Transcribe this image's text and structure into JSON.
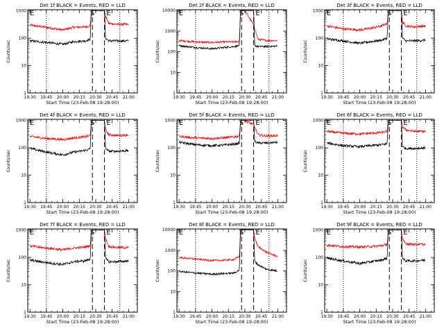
{
  "colors": {
    "events": "#000000",
    "lld": "#ff0000",
    "axes": "#000000",
    "background": "#ffffff"
  },
  "chart_data": [
    {
      "type": "line",
      "title": "Det 1f BLACK = Events, RED = LLD",
      "xlabel": "Start Time (23-Feb-08 19:28:00)",
      "ylabel": "Counts/sec",
      "x_ticks": [
        "19:30",
        "19:45",
        "20:00",
        "20:15",
        "20:30",
        "20:45",
        "21:00"
      ],
      "y_ticks": [
        "1",
        "10",
        "100",
        "1000"
      ],
      "yscale": "log",
      "ylim": [
        1,
        1100
      ],
      "markers": [
        "S",
        "E"
      ],
      "series": [
        {
          "color": "red",
          "x": [
            "19:30",
            "19:45",
            "20:00",
            "20:10",
            "20:20",
            "20:25",
            "20:26",
            "20:27",
            "20:30",
            "20:38",
            "20:39",
            "20:42",
            "20:50",
            "21:00"
          ],
          "y": [
            300,
            250,
            200,
            250,
            260,
            280,
            1000,
            1000,
            1000,
            1000,
            600,
            350,
            320,
            320
          ]
        },
        {
          "color": "black",
          "x": [
            "19:30",
            "19:45",
            "20:00",
            "20:10",
            "20:20",
            "20:25",
            "20:26",
            "20:30",
            "20:38",
            "20:39",
            "20:42",
            "20:50",
            "21:00"
          ],
          "y": [
            80,
            70,
            60,
            75,
            80,
            90,
            1000,
            1000,
            1000,
            100,
            80,
            80,
            80
          ]
        }
      ]
    },
    {
      "type": "line",
      "title": "Det 2f BLACK = Events, RED = LLD",
      "xlabel": "Start Time (23-Feb-08 19:28:00)",
      "ylabel": "Counts/sec",
      "x_ticks": [
        "19:30",
        "19:45",
        "20:00",
        "20:15",
        "20:30",
        "20:45",
        "21:00"
      ],
      "y_ticks": [
        "1",
        "10",
        "100",
        "1000",
        "10000"
      ],
      "yscale": "log",
      "ylim": [
        1,
        11000
      ],
      "markers": [
        "S",
        "E"
      ],
      "series": [
        {
          "color": "red",
          "x": [
            "19:30",
            "19:45",
            "20:00",
            "20:10",
            "20:20",
            "20:25",
            "20:26",
            "20:30",
            "20:38",
            "20:42",
            "20:50",
            "21:00"
          ],
          "y": [
            350,
            300,
            280,
            300,
            300,
            320,
            10000,
            10000,
            2000,
            400,
            350,
            350
          ]
        },
        {
          "color": "black",
          "x": [
            "19:30",
            "19:45",
            "20:00",
            "20:10",
            "20:20",
            "20:25",
            "20:26",
            "20:30",
            "20:38",
            "20:39",
            "20:42",
            "20:50",
            "21:00"
          ],
          "y": [
            200,
            160,
            140,
            160,
            180,
            200,
            10000,
            10000,
            10000,
            200,
            180,
            180,
            190
          ]
        }
      ]
    },
    {
      "type": "line",
      "title": "Det 3f BLACK = Events, RED = LLD",
      "xlabel": "Start Time (23-Feb-08 19:28:00)",
      "ylabel": "Counts/sec",
      "x_ticks": [
        "19:30",
        "19:45",
        "20:00",
        "20:15",
        "20:30",
        "20:45",
        "21:00"
      ],
      "y_ticks": [
        "1",
        "10",
        "100",
        "1000"
      ],
      "yscale": "log",
      "ylim": [
        1,
        1100
      ],
      "markers": [
        "S",
        "E"
      ],
      "series": [
        {
          "color": "red",
          "x": [
            "19:30",
            "19:45",
            "20:00",
            "20:10",
            "20:20",
            "20:25",
            "20:26",
            "20:30",
            "20:38",
            "20:39",
            "20:42",
            "20:50",
            "21:00"
          ],
          "y": [
            280,
            220,
            200,
            230,
            280,
            350,
            1000,
            1000,
            1000,
            400,
            280,
            260,
            280
          ]
        },
        {
          "color": "black",
          "x": [
            "19:30",
            "19:45",
            "20:00",
            "20:10",
            "20:20",
            "20:25",
            "20:26",
            "20:30",
            "20:38",
            "20:39",
            "20:42",
            "20:50",
            "21:00"
          ],
          "y": [
            95,
            80,
            65,
            75,
            85,
            100,
            1000,
            1000,
            1000,
            100,
            80,
            80,
            85
          ]
        }
      ]
    },
    {
      "type": "line",
      "title": "Det 4f BLACK = Events, RED = LLD",
      "xlabel": "Start Time (23-Feb-08 19:28:00)",
      "ylabel": "Counts/sec",
      "x_ticks": [
        "19:30",
        "19:45",
        "20:00",
        "20:15",
        "20:30",
        "20:45",
        "21:00"
      ],
      "y_ticks": [
        "1",
        "10",
        "100",
        "1000"
      ],
      "yscale": "log",
      "ylim": [
        1,
        1100
      ],
      "markers": [
        "S",
        "E"
      ],
      "series": [
        {
          "color": "red",
          "x": [
            "19:30",
            "19:45",
            "20:00",
            "20:10",
            "20:20",
            "20:25",
            "20:26",
            "20:30",
            "20:38",
            "20:39",
            "20:42",
            "20:50",
            "21:00"
          ],
          "y": [
            260,
            220,
            200,
            230,
            250,
            280,
            1000,
            1000,
            1000,
            450,
            300,
            280,
            300
          ]
        },
        {
          "color": "black",
          "x": [
            "19:30",
            "19:45",
            "20:00",
            "20:10",
            "20:20",
            "20:25",
            "20:26",
            "20:30",
            "20:38",
            "20:39",
            "20:42",
            "20:50",
            "21:00"
          ],
          "y": [
            95,
            70,
            55,
            70,
            80,
            90,
            1000,
            1000,
            1000,
            95,
            75,
            75,
            80
          ]
        }
      ]
    },
    {
      "type": "line",
      "title": "Det 5f BLACK = Events, RED = LLD",
      "xlabel": "Start Time (23-Feb-08 19:28:00)",
      "ylabel": "Counts/sec",
      "x_ticks": [
        "19:30",
        "19:45",
        "20:00",
        "20:15",
        "20:30",
        "20:45",
        "21:00"
      ],
      "y_ticks": [
        "1",
        "10",
        "100",
        "1000"
      ],
      "yscale": "log",
      "ylim": [
        1,
        1100
      ],
      "markers": [
        "S",
        "E"
      ],
      "series": [
        {
          "color": "red",
          "x": [
            "19:30",
            "19:45",
            "20:00",
            "20:10",
            "20:20",
            "20:25",
            "20:26",
            "20:30",
            "20:38",
            "20:42",
            "20:50",
            "21:00"
          ],
          "y": [
            260,
            230,
            220,
            230,
            250,
            270,
            1000,
            1000,
            700,
            300,
            270,
            280
          ]
        },
        {
          "color": "black",
          "x": [
            "19:30",
            "19:45",
            "20:00",
            "20:10",
            "20:20",
            "20:25",
            "20:26",
            "20:30",
            "20:38",
            "20:39",
            "20:42",
            "20:50",
            "21:00"
          ],
          "y": [
            160,
            130,
            120,
            125,
            135,
            150,
            1000,
            1000,
            1000,
            170,
            150,
            150,
            160
          ]
        }
      ]
    },
    {
      "type": "line",
      "title": "Det 6f BLACK = Events, RED = LLD",
      "xlabel": "Start Time (23-Feb-08 19:28:00)",
      "ylabel": "Counts/sec",
      "x_ticks": [
        "19:30",
        "19:45",
        "20:00",
        "20:15",
        "20:30",
        "20:45",
        "21:00"
      ],
      "y_ticks": [
        "1",
        "10",
        "100",
        "1000"
      ],
      "yscale": "log",
      "ylim": [
        1,
        1100
      ],
      "markers": [
        "S",
        "E"
      ],
      "series": [
        {
          "color": "red",
          "x": [
            "19:30",
            "19:45",
            "20:00",
            "20:10",
            "20:20",
            "20:25",
            "20:26",
            "20:30",
            "20:38",
            "20:39",
            "20:42",
            "20:50",
            "21:00"
          ],
          "y": [
            400,
            340,
            320,
            340,
            360,
            400,
            1000,
            1000,
            1000,
            600,
            450,
            400,
            400
          ]
        },
        {
          "color": "black",
          "x": [
            "19:30",
            "19:45",
            "20:00",
            "20:10",
            "20:20",
            "20:25",
            "20:26",
            "20:30",
            "20:38",
            "20:39",
            "20:42",
            "20:50",
            "21:00"
          ],
          "y": [
            150,
            120,
            110,
            120,
            130,
            140,
            1000,
            1000,
            1000,
            110,
            95,
            95,
            100
          ]
        }
      ]
    },
    {
      "type": "line",
      "title": "Det 7f BLACK = Events, RED = LLD",
      "xlabel": "Start Time (23-Feb-08 19:28:00)",
      "ylabel": "Counts/sec",
      "x_ticks": [
        "19:30",
        "19:45",
        "20:00",
        "20:15",
        "20:30",
        "20:45",
        "21:00"
      ],
      "y_ticks": [
        "1",
        "10",
        "100",
        "1000"
      ],
      "yscale": "log",
      "ylim": [
        1,
        1100
      ],
      "markers": [
        "S",
        "E"
      ],
      "series": [
        {
          "color": "red",
          "x": [
            "19:30",
            "19:45",
            "20:00",
            "20:10",
            "20:20",
            "20:25",
            "20:26",
            "20:30",
            "20:38",
            "20:39",
            "20:42",
            "20:50",
            "21:00"
          ],
          "y": [
            260,
            220,
            190,
            220,
            240,
            270,
            1000,
            1000,
            1000,
            500,
            250,
            230,
            230
          ]
        },
        {
          "color": "black",
          "x": [
            "19:30",
            "19:45",
            "20:00",
            "20:10",
            "20:20",
            "20:25",
            "20:26",
            "20:30",
            "20:38",
            "20:39",
            "20:42",
            "20:50",
            "21:00"
          ],
          "y": [
            80,
            65,
            55,
            70,
            75,
            85,
            1000,
            1000,
            1000,
            90,
            70,
            70,
            75
          ]
        }
      ]
    },
    {
      "type": "line",
      "title": "Det 8f BLACK = Events, RED = LLD",
      "xlabel": "Start Time (23-Feb-08 19:28:00)",
      "ylabel": "Counts/sec",
      "x_ticks": [
        "19:30",
        "19:45",
        "20:00",
        "20:15",
        "20:30",
        "20:45",
        "21:00"
      ],
      "y_ticks": [
        "1",
        "10",
        "100",
        "1000",
        "10000"
      ],
      "yscale": "log",
      "ylim": [
        1,
        11000
      ],
      "markers": [
        "S",
        "E"
      ],
      "series": [
        {
          "color": "red",
          "x": [
            "19:30",
            "19:45",
            "20:00",
            "20:10",
            "20:20",
            "20:25",
            "20:26",
            "20:30",
            "20:38",
            "20:39",
            "20:42",
            "20:50",
            "21:00"
          ],
          "y": [
            450,
            380,
            320,
            330,
            360,
            500,
            10000,
            10000,
            10000,
            4000,
            1500,
            800,
            500
          ]
        },
        {
          "color": "black",
          "x": [
            "19:30",
            "19:45",
            "20:00",
            "20:10",
            "20:20",
            "20:25",
            "20:26",
            "20:30",
            "20:38",
            "20:39",
            "20:42",
            "20:50",
            "21:00"
          ],
          "y": [
            95,
            80,
            70,
            75,
            80,
            110,
            10000,
            10000,
            10000,
            300,
            200,
            120,
            100
          ]
        }
      ]
    },
    {
      "type": "line",
      "title": "Det 9f BLACK = Events, RED = LLD",
      "xlabel": "Start Time (23-Feb-08 19:28:00)",
      "ylabel": "Counts/sec",
      "x_ticks": [
        "19:30",
        "19:45",
        "20:00",
        "20:15",
        "20:30",
        "20:45",
        "21:00"
      ],
      "y_ticks": [
        "1",
        "10",
        "100",
        "1000"
      ],
      "yscale": "log",
      "ylim": [
        1,
        1100
      ],
      "markers": [
        "S",
        "E"
      ],
      "series": [
        {
          "color": "red",
          "x": [
            "19:30",
            "19:45",
            "20:00",
            "20:10",
            "20:20",
            "20:25",
            "20:26",
            "20:30",
            "20:38",
            "20:39",
            "20:42",
            "20:50",
            "21:00"
          ],
          "y": [
            280,
            250,
            240,
            250,
            270,
            300,
            1000,
            1000,
            1000,
            450,
            320,
            300,
            300
          ]
        },
        {
          "color": "black",
          "x": [
            "19:30",
            "19:45",
            "20:00",
            "20:10",
            "20:20",
            "20:25",
            "20:26",
            "20:30",
            "20:38",
            "20:39",
            "20:42",
            "20:50",
            "21:00"
          ],
          "y": [
            95,
            75,
            60,
            70,
            80,
            95,
            1000,
            1000,
            1000,
            90,
            75,
            75,
            80
          ]
        }
      ]
    }
  ]
}
